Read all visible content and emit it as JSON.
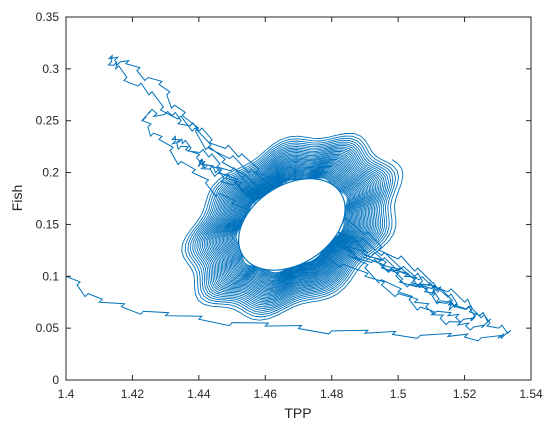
{
  "chart_data": {
    "type": "line",
    "title": "",
    "xlabel": "TPP",
    "ylabel": "Fish",
    "xlim": [
      1.4,
      1.54
    ],
    "ylim": [
      0,
      0.35
    ],
    "xticks": [
      1.4,
      1.42,
      1.44,
      1.46,
      1.48,
      1.5,
      1.52,
      1.54
    ],
    "xtick_labels": [
      "1.4",
      "1.42",
      "1.44",
      "1.46",
      "1.48",
      "1.5",
      "1.52",
      "1.54"
    ],
    "yticks": [
      0,
      0.05,
      0.1,
      0.15,
      0.2,
      0.25,
      0.3,
      0.35
    ],
    "ytick_labels": [
      "0",
      "0.05",
      "0.1",
      "0.15",
      "0.2",
      "0.25",
      "0.3",
      "0.35"
    ],
    "grid": false,
    "legend": "none",
    "series": [
      {
        "color": "#0072BD",
        "description": "phase-plane trajectory spiralling inward to a limit cycle",
        "x": [
          1.4,
          1.41,
          1.43,
          1.46,
          1.49,
          1.515,
          1.53,
          1.533,
          1.525,
          1.512,
          1.495,
          1.475,
          1.455,
          1.438,
          1.425,
          1.415,
          1.413,
          1.418,
          1.428,
          1.435,
          1.447,
          1.465,
          1.485,
          1.5,
          1.51,
          1.518,
          1.525,
          1.527,
          1.52,
          1.505,
          1.49,
          1.47,
          1.452,
          1.44,
          1.432,
          1.425,
          1.423,
          1.428,
          1.438,
          1.45,
          1.47,
          1.49,
          1.505,
          1.515,
          1.522,
          1.523,
          1.515,
          1.5,
          1.485,
          1.468,
          1.453,
          1.443,
          1.435,
          1.432,
          1.436,
          1.446,
          1.46,
          1.478,
          1.495,
          1.508,
          1.515,
          1.517,
          1.51,
          1.497,
          1.482,
          1.466,
          1.453,
          1.445,
          1.44,
          1.441,
          1.448,
          1.46,
          1.475,
          1.49,
          1.502,
          1.51,
          1.512,
          1.505,
          1.492
        ],
        "y": [
          0.1,
          0.075,
          0.062,
          0.052,
          0.045,
          0.042,
          0.04,
          0.045,
          0.06,
          0.085,
          0.12,
          0.16,
          0.2,
          0.24,
          0.275,
          0.3,
          0.31,
          0.305,
          0.285,
          0.255,
          0.21,
          0.165,
          0.12,
          0.085,
          0.063,
          0.053,
          0.05,
          0.056,
          0.075,
          0.105,
          0.14,
          0.18,
          0.215,
          0.24,
          0.255,
          0.258,
          0.25,
          0.232,
          0.2,
          0.17,
          0.135,
          0.1,
          0.075,
          0.062,
          0.057,
          0.062,
          0.08,
          0.105,
          0.135,
          0.165,
          0.195,
          0.215,
          0.228,
          0.232,
          0.222,
          0.2,
          0.172,
          0.14,
          0.108,
          0.085,
          0.072,
          0.07,
          0.082,
          0.105,
          0.13,
          0.158,
          0.182,
          0.2,
          0.21,
          0.208,
          0.195,
          0.172,
          0.145,
          0.12,
          0.1,
          0.088,
          0.087,
          0.1,
          0.12
        ]
      }
    ],
    "hole_region": {
      "description": "blank elliptical interior enclosed by the limit cycle",
      "center_x": 1.468,
      "center_y": 0.15,
      "radius_x": 0.0175,
      "radius_y": 0.038,
      "rotation_deg": -33
    }
  }
}
